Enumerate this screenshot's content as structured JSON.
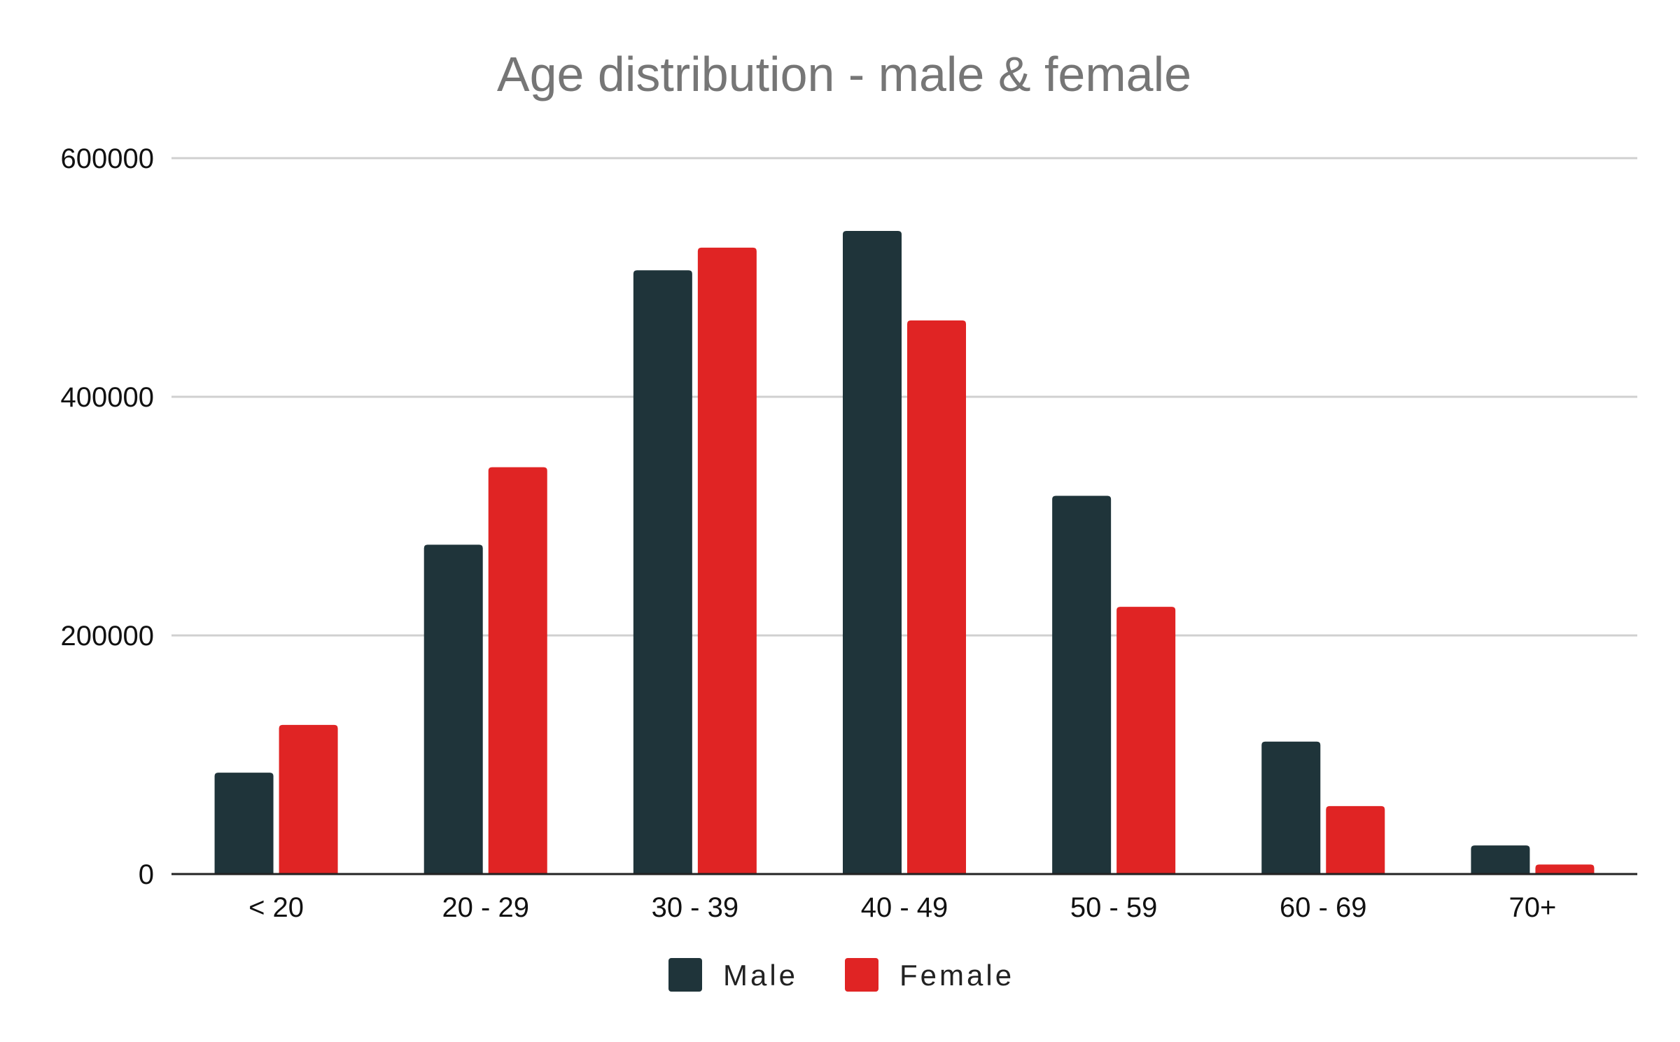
{
  "chart_data": {
    "type": "bar",
    "title": "Age distribution - male & female",
    "xlabel": "",
    "ylabel": "",
    "categories": [
      "< 20",
      "20 - 29",
      "30 - 39",
      "40 - 49",
      "50 - 59",
      "60 - 69",
      "70+"
    ],
    "series": [
      {
        "name": "Male",
        "color": "#1f343a",
        "values": [
          85000,
          276000,
          506000,
          539000,
          317000,
          111000,
          24000
        ]
      },
      {
        "name": "Female",
        "color": "#e02424",
        "values": [
          125000,
          341000,
          525000,
          464000,
          224000,
          57000,
          8000
        ]
      }
    ],
    "ylim": [
      0,
      600000
    ],
    "yticks": [
      0,
      200000,
      400000,
      600000
    ],
    "ytick_labels": [
      "0",
      "200000",
      "400000",
      "600000"
    ],
    "grid": true,
    "legend_position": "bottom"
  }
}
